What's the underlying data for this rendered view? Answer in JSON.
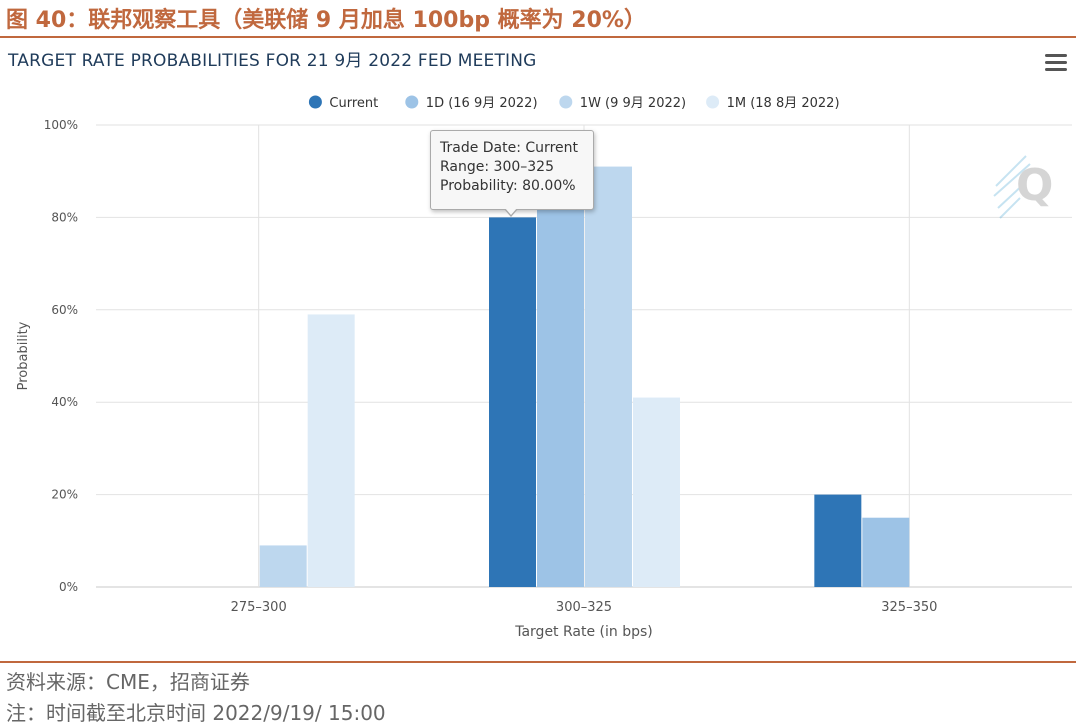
{
  "figure": {
    "title": "图 40：联邦观察工具（美联储 9 月加息 100bp 概率为 20%）",
    "source": "资料来源：CME，招商证券",
    "note": "注：时间截至北京时间 2022/9/19/ 15:00"
  },
  "tooltip": {
    "line1": "Trade Date: Current",
    "line2": "Range: 300–325",
    "line3": "Probability: 80.00%"
  },
  "colors": {
    "accent": "#c0683e",
    "title_text": "#1f3b5a"
  },
  "chart_data": {
    "type": "bar",
    "title": "TARGET RATE PROBABILITIES FOR 21 9月 2022 FED MEETING",
    "xlabel": "Target Rate (in bps)",
    "ylabel": "Probability",
    "categories": [
      "275–300",
      "300–325",
      "325–350"
    ],
    "y_ticks": [
      "0%",
      "20%",
      "40%",
      "60%",
      "80%",
      "100%"
    ],
    "ylim": [
      0,
      100
    ],
    "grid": true,
    "legend_position": "top-center",
    "series": [
      {
        "name": "Current",
        "color": "#2e75b6",
        "values": [
          0,
          80,
          20
        ]
      },
      {
        "name": "1D (16 9月 2022)",
        "color": "#9dc3e6",
        "values": [
          0,
          86,
          15
        ]
      },
      {
        "name": "1W (9 9月 2022)",
        "color": "#bdd7ee",
        "values": [
          9,
          91,
          0
        ]
      },
      {
        "name": "1M (18 8月 2022)",
        "color": "#ddebf7",
        "values": [
          59,
          41,
          0
        ]
      }
    ]
  }
}
